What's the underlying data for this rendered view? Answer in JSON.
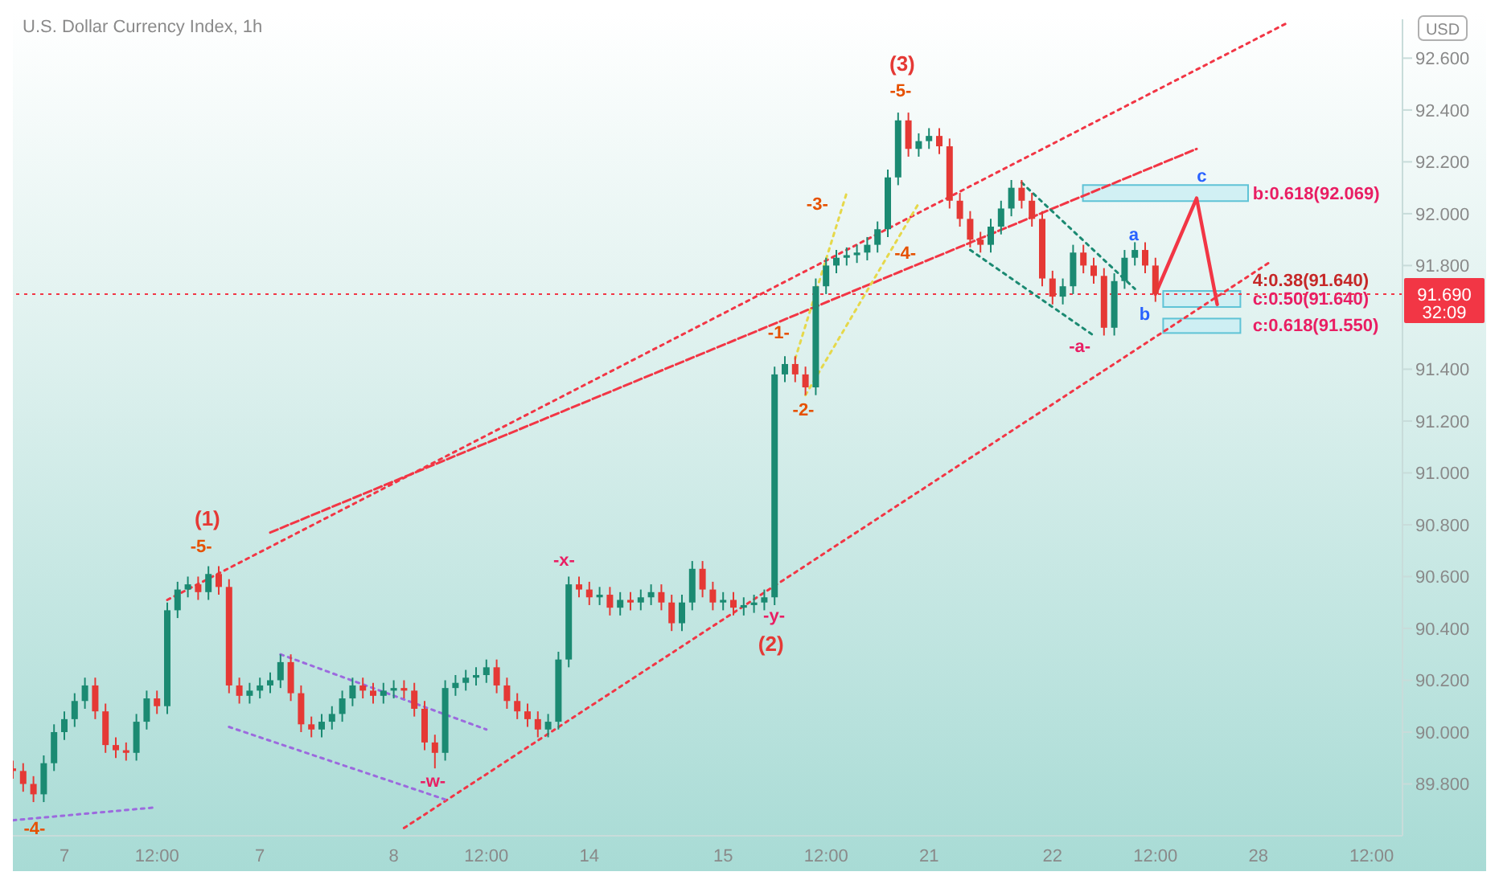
{
  "chart_data": {
    "type": "candlestick",
    "title": "U.S. Dollar Currency Index, 1h",
    "categories": [
      null,
      null,
      null,
      null,
      null,
      "7",
      null,
      null,
      null,
      null,
      null,
      null,
      null,
      null,
      "12:00",
      null,
      null,
      null,
      null,
      null,
      null,
      null,
      null,
      null,
      "7",
      null,
      null,
      null,
      null,
      null,
      null,
      null,
      null,
      null,
      null,
      null,
      null,
      "8",
      null,
      null,
      null,
      null,
      null,
      null,
      null,
      null,
      "12:00",
      null,
      null,
      null,
      null,
      null,
      null,
      null,
      null,
      null,
      "14",
      null,
      null,
      null,
      null,
      null,
      null,
      null,
      null,
      null,
      null,
      null,
      null,
      "15",
      null,
      null,
      null,
      null,
      null,
      null,
      null,
      null,
      null,
      "12:00",
      null,
      null,
      null,
      null,
      null,
      null,
      null,
      null,
      null,
      "21",
      null,
      null,
      null,
      null,
      null,
      null,
      null,
      null,
      null,
      null,
      null,
      "22",
      null,
      null,
      null,
      null,
      null,
      null,
      null,
      null,
      null,
      "12:00",
      null,
      null,
      null,
      null,
      null,
      null,
      null,
      null,
      null,
      "28",
      null,
      null,
      null,
      null,
      null,
      null,
      null,
      null,
      null,
      null,
      "12:00",
      null,
      null,
      null
    ],
    "ohlc": [
      [
        89.86,
        89.89,
        89.82,
        89.85
      ],
      [
        89.85,
        89.88,
        89.77,
        89.8
      ],
      [
        89.8,
        89.83,
        89.73,
        89.76
      ],
      [
        89.76,
        89.91,
        89.73,
        89.88
      ],
      [
        89.88,
        90.03,
        89.85,
        90.0
      ],
      [
        90.0,
        90.08,
        89.97,
        90.05
      ],
      [
        90.05,
        90.15,
        90.02,
        90.12
      ],
      [
        90.12,
        90.21,
        90.09,
        90.18
      ],
      [
        90.18,
        90.21,
        90.05,
        90.08
      ],
      [
        90.08,
        90.11,
        89.92,
        89.95
      ],
      [
        89.95,
        89.98,
        89.9,
        89.93
      ],
      [
        89.93,
        89.96,
        89.89,
        89.92
      ],
      [
        89.92,
        90.07,
        89.89,
        90.04
      ],
      [
        90.04,
        90.16,
        90.01,
        90.13
      ],
      [
        90.13,
        90.16,
        90.07,
        90.1
      ],
      [
        90.1,
        90.5,
        90.07,
        90.47
      ],
      [
        90.47,
        90.58,
        90.44,
        90.55
      ],
      [
        90.55,
        90.6,
        90.52,
        90.57
      ],
      [
        90.57,
        90.6,
        90.51,
        90.54
      ],
      [
        90.54,
        90.64,
        90.51,
        90.61
      ],
      [
        90.61,
        90.64,
        90.53,
        90.56
      ],
      [
        90.56,
        90.59,
        90.15,
        90.18
      ],
      [
        90.18,
        90.21,
        90.11,
        90.14
      ],
      [
        90.14,
        90.19,
        90.11,
        90.16
      ],
      [
        90.16,
        90.21,
        90.13,
        90.18
      ],
      [
        90.18,
        90.23,
        90.15,
        90.2
      ],
      [
        90.2,
        90.3,
        90.17,
        90.27
      ],
      [
        90.27,
        90.3,
        90.12,
        90.15
      ],
      [
        90.15,
        90.18,
        90.0,
        90.03
      ],
      [
        90.03,
        90.06,
        89.98,
        90.01
      ],
      [
        90.01,
        90.07,
        89.98,
        90.04
      ],
      [
        90.04,
        90.1,
        90.01,
        90.07
      ],
      [
        90.07,
        90.16,
        90.04,
        90.13
      ],
      [
        90.13,
        90.21,
        90.1,
        90.18
      ],
      [
        90.18,
        90.21,
        90.13,
        90.16
      ],
      [
        90.16,
        90.19,
        90.11,
        90.14
      ],
      [
        90.14,
        90.19,
        90.11,
        90.16
      ],
      [
        90.16,
        90.2,
        90.13,
        90.17
      ],
      [
        90.17,
        90.2,
        90.13,
        90.16
      ],
      [
        90.16,
        90.19,
        90.06,
        90.09
      ],
      [
        90.09,
        90.12,
        89.93,
        89.96
      ],
      [
        89.96,
        89.99,
        89.86,
        89.92
      ],
      [
        89.92,
        90.2,
        89.89,
        90.17
      ],
      [
        90.17,
        90.22,
        90.14,
        90.19
      ],
      [
        90.19,
        90.24,
        90.16,
        90.21
      ],
      [
        90.21,
        90.25,
        90.18,
        90.22
      ],
      [
        90.22,
        90.28,
        90.19,
        90.25
      ],
      [
        90.25,
        90.28,
        90.15,
        90.18
      ],
      [
        90.18,
        90.21,
        90.09,
        90.12
      ],
      [
        90.12,
        90.15,
        90.05,
        90.08
      ],
      [
        90.08,
        90.11,
        90.02,
        90.05
      ],
      [
        90.05,
        90.08,
        89.98,
        90.01
      ],
      [
        90.01,
        90.07,
        89.98,
        90.04
      ],
      [
        90.04,
        90.31,
        90.01,
        90.28
      ],
      [
        90.28,
        90.6,
        90.25,
        90.57
      ],
      [
        90.57,
        90.6,
        90.52,
        90.55
      ],
      [
        90.55,
        90.58,
        90.49,
        90.52
      ],
      [
        90.52,
        90.56,
        90.49,
        90.53
      ],
      [
        90.53,
        90.56,
        90.45,
        90.48
      ],
      [
        90.48,
        90.54,
        90.45,
        90.51
      ],
      [
        90.51,
        90.54,
        90.47,
        90.5
      ],
      [
        90.5,
        90.55,
        90.47,
        90.52
      ],
      [
        90.52,
        90.57,
        90.49,
        90.54
      ],
      [
        90.54,
        90.57,
        90.47,
        90.5
      ],
      [
        90.5,
        90.53,
        90.39,
        90.42
      ],
      [
        90.42,
        90.53,
        90.39,
        90.5
      ],
      [
        90.5,
        90.66,
        90.47,
        90.63
      ],
      [
        90.63,
        90.66,
        90.52,
        90.55
      ],
      [
        90.55,
        90.58,
        90.47,
        90.5
      ],
      [
        90.5,
        90.54,
        90.47,
        90.51
      ],
      [
        90.51,
        90.54,
        90.45,
        90.48
      ],
      [
        90.48,
        90.52,
        90.45,
        90.49
      ],
      [
        90.49,
        90.53,
        90.46,
        90.5
      ],
      [
        90.5,
        90.55,
        90.47,
        90.52
      ],
      [
        90.52,
        91.41,
        90.49,
        91.38
      ],
      [
        91.38,
        91.45,
        91.35,
        91.42
      ],
      [
        91.42,
        91.45,
        91.35,
        91.38
      ],
      [
        91.38,
        91.41,
        91.3,
        91.33
      ],
      [
        91.33,
        91.75,
        91.3,
        91.72
      ],
      [
        91.72,
        91.83,
        91.69,
        91.8
      ],
      [
        91.8,
        91.86,
        91.77,
        91.83
      ],
      [
        91.83,
        91.87,
        91.8,
        91.84
      ],
      [
        91.84,
        91.88,
        91.81,
        91.85
      ],
      [
        91.85,
        91.91,
        91.82,
        91.88
      ],
      [
        91.88,
        91.97,
        91.85,
        91.94
      ],
      [
        91.94,
        92.17,
        91.91,
        92.14
      ],
      [
        92.14,
        92.39,
        92.11,
        92.36
      ],
      [
        92.36,
        92.39,
        92.22,
        92.25
      ],
      [
        92.25,
        92.31,
        92.22,
        92.28
      ],
      [
        92.28,
        92.33,
        92.25,
        92.3
      ],
      [
        92.3,
        92.33,
        92.23,
        92.26
      ],
      [
        92.26,
        92.29,
        92.02,
        92.05
      ],
      [
        92.05,
        92.08,
        91.95,
        91.98
      ],
      [
        91.98,
        92.01,
        91.87,
        91.9
      ],
      [
        91.9,
        91.93,
        91.85,
        91.88
      ],
      [
        91.88,
        91.98,
        91.85,
        91.95
      ],
      [
        91.95,
        92.05,
        91.92,
        92.02
      ],
      [
        92.02,
        92.13,
        91.99,
        92.1
      ],
      [
        92.1,
        92.13,
        92.02,
        92.05
      ],
      [
        92.05,
        92.08,
        91.95,
        91.98
      ],
      [
        91.98,
        92.01,
        91.72,
        91.75
      ],
      [
        91.75,
        91.78,
        91.65,
        91.68
      ],
      [
        91.68,
        91.75,
        91.65,
        91.72
      ],
      [
        91.72,
        91.88,
        91.69,
        91.85
      ],
      [
        91.85,
        91.88,
        91.77,
        91.8
      ],
      [
        91.8,
        91.83,
        91.73,
        91.76
      ],
      [
        91.76,
        91.79,
        91.53,
        91.56
      ],
      [
        91.56,
        91.77,
        91.53,
        91.74
      ],
      [
        91.74,
        91.86,
        91.71,
        91.83
      ],
      [
        91.83,
        91.89,
        91.8,
        91.86
      ],
      [
        91.86,
        91.89,
        91.77,
        91.8
      ],
      [
        91.8,
        91.83,
        91.66,
        91.69
      ],
      null,
      null,
      null,
      null,
      null,
      null,
      null,
      null,
      null,
      null,
      null,
      null,
      null,
      null,
      null,
      null,
      null,
      null,
      null,
      null,
      null,
      null,
      null,
      null
    ],
    "series": [
      {
        "type": "line",
        "color": "#f23645",
        "line_style": "dotted",
        "values": [
          null,
          null,
          null,
          null,
          null,
          null,
          null,
          null,
          null,
          null,
          null,
          null,
          null,
          null,
          null,
          90.51,
          null,
          null,
          null,
          null,
          null,
          null,
          null,
          null,
          null,
          null,
          null,
          null,
          null,
          null,
          null,
          null,
          null,
          null,
          null,
          null,
          null,
          null,
          null,
          null,
          null,
          null,
          null,
          null,
          null,
          null,
          null,
          null,
          null,
          null,
          null,
          null,
          null,
          null,
          null,
          null,
          null,
          null,
          null,
          null,
          null,
          null,
          null,
          null,
          null,
          null,
          null,
          null,
          null,
          null,
          null,
          null,
          null,
          null,
          null,
          null,
          null,
          null,
          null,
          null,
          null,
          null,
          null,
          null,
          null,
          null,
          null,
          null,
          null,
          null,
          null,
          null,
          null,
          null,
          null,
          null,
          null,
          null,
          null,
          null,
          null,
          null,
          null,
          null,
          null,
          null,
          null,
          null,
          null,
          null,
          null,
          null,
          null,
          null,
          null,
          null,
          null,
          null,
          null,
          null,
          null,
          null,
          null,
          null,
          92.74,
          null,
          null,
          null,
          null,
          null,
          null,
          null,
          null,
          null,
          null,
          null
        ]
      },
      {
        "type": "line",
        "color": "#f23645",
        "line_style": "dashed",
        "values": [
          null,
          null,
          null,
          null,
          null,
          null,
          null,
          null,
          null,
          null,
          null,
          null,
          null,
          null,
          null,
          null,
          null,
          null,
          null,
          null,
          null,
          null,
          null,
          null,
          null,
          90.77,
          null,
          null,
          null,
          null,
          null,
          null,
          null,
          null,
          null,
          null,
          null,
          null,
          null,
          null,
          null,
          null,
          null,
          null,
          null,
          null,
          null,
          null,
          null,
          null,
          null,
          null,
          null,
          null,
          null,
          null,
          null,
          null,
          null,
          null,
          null,
          null,
          null,
          null,
          null,
          null,
          null,
          null,
          null,
          null,
          null,
          null,
          null,
          null,
          null,
          null,
          null,
          null,
          null,
          null,
          null,
          null,
          null,
          null,
          null,
          null,
          null,
          null,
          null,
          null,
          null,
          null,
          null,
          null,
          null,
          null,
          null,
          null,
          null,
          null,
          null,
          null,
          null,
          null,
          null,
          null,
          null,
          null,
          null,
          null,
          null,
          null,
          null,
          null,
          null,
          92.25,
          null,
          null,
          null,
          null,
          null,
          null,
          null,
          null,
          null,
          null,
          null,
          null,
          null,
          null,
          null,
          null,
          null,
          null,
          null,
          null
        ]
      },
      {
        "type": "line",
        "color": "#f23645",
        "line_style": "dotted",
        "values": [
          null,
          null,
          null,
          null,
          null,
          null,
          null,
          null,
          null,
          null,
          null,
          null,
          null,
          null,
          null,
          null,
          null,
          null,
          null,
          null,
          null,
          null,
          null,
          null,
          null,
          null,
          null,
          null,
          null,
          null,
          null,
          null,
          null,
          null,
          null,
          null,
          null,
          null,
          89.63,
          null,
          null,
          null,
          null,
          null,
          null,
          null,
          null,
          null,
          null,
          null,
          null,
          null,
          null,
          null,
          null,
          null,
          null,
          null,
          null,
          null,
          null,
          null,
          null,
          null,
          null,
          null,
          null,
          null,
          null,
          null,
          null,
          null,
          null,
          null,
          null,
          null,
          null,
          null,
          null,
          null,
          null,
          null,
          null,
          null,
          null,
          null,
          null,
          null,
          null,
          null,
          null,
          null,
          null,
          null,
          null,
          null,
          null,
          null,
          null,
          null,
          null,
          null,
          null,
          null,
          null,
          null,
          null,
          null,
          null,
          null,
          null,
          null,
          null,
          null,
          null,
          null,
          null,
          null,
          null,
          null,
          null,
          null,
          91.81,
          null,
          null,
          null,
          null,
          null,
          null,
          null,
          null,
          null,
          null,
          null,
          null,
          null
        ]
      },
      {
        "type": "line",
        "color": "#9c6ade",
        "line_style": "dotted",
        "values": [
          null,
          null,
          null,
          null,
          null,
          null,
          null,
          null,
          null,
          null,
          null,
          null,
          null,
          null,
          null,
          null,
          null,
          null,
          null,
          null,
          null,
          null,
          null,
          null,
          null,
          null,
          90.3,
          null,
          null,
          null,
          null,
          null,
          null,
          null,
          null,
          null,
          null,
          null,
          null,
          null,
          null,
          null,
          null,
          null,
          null,
          null,
          90.01,
          null,
          null,
          null,
          null,
          null,
          null,
          null,
          null,
          null,
          null,
          null,
          null,
          null,
          null,
          null,
          null,
          null,
          null,
          null,
          null,
          null,
          null,
          null,
          null,
          null,
          null,
          null,
          null,
          null,
          null,
          null,
          null,
          null,
          null,
          null,
          null,
          null,
          null,
          null,
          null,
          null,
          null,
          null,
          null,
          null,
          null,
          null,
          null,
          null,
          null,
          null,
          null,
          null,
          null,
          null,
          null,
          null,
          null,
          null,
          null,
          null,
          null,
          null,
          null,
          null,
          null,
          null,
          null,
          null,
          null,
          null,
          null,
          null,
          null,
          null,
          null,
          null,
          null,
          null,
          null,
          null,
          null,
          null,
          null,
          null,
          null,
          null,
          null,
          null
        ]
      },
      {
        "type": "line",
        "color": "#9c6ade",
        "line_style": "dotted",
        "values": [
          null,
          null,
          null,
          null,
          null,
          null,
          null,
          null,
          null,
          null,
          null,
          null,
          null,
          null,
          null,
          null,
          null,
          null,
          null,
          null,
          null,
          90.02,
          null,
          null,
          null,
          null,
          null,
          null,
          null,
          null,
          null,
          null,
          null,
          null,
          null,
          null,
          null,
          null,
          null,
          null,
          null,
          null,
          89.74,
          null,
          null,
          null,
          null,
          null,
          null,
          null,
          null,
          null,
          null,
          null,
          null,
          null,
          null,
          null,
          null,
          null,
          null,
          null,
          null,
          null,
          null,
          null,
          null,
          null,
          null,
          null,
          null,
          null,
          null,
          null,
          null,
          null,
          null,
          null,
          null,
          null,
          null,
          null,
          null,
          null,
          null,
          null,
          null,
          null,
          null,
          null,
          null,
          null,
          null,
          null,
          null,
          null,
          null,
          null,
          null,
          null,
          null,
          null,
          null,
          null,
          null,
          null,
          null,
          null,
          null,
          null,
          null,
          null,
          null,
          null,
          null,
          null,
          null,
          null,
          null,
          null,
          null,
          null,
          null,
          null,
          null,
          null,
          null,
          null,
          null,
          null,
          null,
          null,
          null,
          null,
          null,
          null
        ]
      },
      {
        "type": "line",
        "color": "#9c6ade",
        "line_style": "dotted",
        "values": [
          89.66,
          null,
          null,
          null,
          null,
          null,
          null,
          null,
          null,
          null,
          null,
          null,
          null,
          null,
          89.71,
          null,
          null,
          null,
          null,
          null,
          null,
          null,
          null,
          null,
          null,
          null,
          null,
          null,
          null,
          null,
          null,
          null,
          null,
          null,
          null,
          null,
          null,
          null,
          null,
          null,
          null,
          null,
          null,
          null,
          null,
          null,
          null,
          null,
          null,
          null,
          null,
          null,
          null,
          null,
          null,
          null,
          null,
          null,
          null,
          null,
          null,
          null,
          null,
          null,
          null,
          null,
          null,
          null,
          null,
          null,
          null,
          null,
          null,
          null,
          null,
          null,
          null,
          null,
          null,
          null,
          null,
          null,
          null,
          null,
          null,
          null,
          null,
          null,
          null,
          null,
          null,
          null,
          null,
          null,
          null,
          null,
          null,
          null,
          null,
          null,
          null,
          null,
          null,
          null,
          null,
          null,
          null,
          null,
          null,
          null,
          null,
          null,
          null,
          null,
          null,
          null,
          null,
          null,
          null,
          null,
          null,
          null,
          null,
          null,
          null,
          null,
          null,
          null,
          null,
          null,
          null,
          null,
          null,
          null,
          null,
          null
        ]
      },
      {
        "type": "line",
        "color": "#e6d84a",
        "line_style": "dotted",
        "values": [
          null,
          null,
          null,
          null,
          null,
          null,
          null,
          null,
          null,
          null,
          null,
          null,
          null,
          null,
          null,
          null,
          null,
          null,
          null,
          null,
          null,
          null,
          null,
          null,
          null,
          null,
          null,
          null,
          null,
          null,
          null,
          null,
          null,
          null,
          null,
          null,
          null,
          null,
          null,
          null,
          null,
          null,
          null,
          null,
          null,
          null,
          null,
          null,
          null,
          null,
          null,
          null,
          null,
          null,
          null,
          null,
          null,
          null,
          null,
          null,
          null,
          null,
          null,
          null,
          null,
          null,
          null,
          null,
          null,
          null,
          null,
          null,
          null,
          null,
          null,
          null,
          91.44,
          null,
          null,
          null,
          null,
          92.08,
          null,
          null,
          null,
          null,
          null,
          null,
          null,
          null,
          null,
          null,
          null,
          null,
          null,
          null,
          null,
          null,
          null,
          null,
          null,
          null,
          null,
          null,
          null,
          null,
          null,
          null,
          null,
          null,
          null,
          null,
          null,
          null,
          null,
          null,
          null,
          null,
          null,
          null,
          null,
          null,
          null,
          null,
          null,
          null,
          null,
          null,
          null,
          null,
          null,
          null,
          null,
          null,
          null,
          null
        ]
      },
      {
        "type": "line",
        "color": "#e6d84a",
        "line_style": "dotted",
        "values": [
          null,
          null,
          null,
          null,
          null,
          null,
          null,
          null,
          null,
          null,
          null,
          null,
          null,
          null,
          null,
          null,
          null,
          null,
          null,
          null,
          null,
          null,
          null,
          null,
          null,
          null,
          null,
          null,
          null,
          null,
          null,
          null,
          null,
          null,
          null,
          null,
          null,
          null,
          null,
          null,
          null,
          null,
          null,
          null,
          null,
          null,
          null,
          null,
          null,
          null,
          null,
          null,
          null,
          null,
          null,
          null,
          null,
          null,
          null,
          null,
          null,
          null,
          null,
          null,
          null,
          null,
          null,
          null,
          null,
          null,
          null,
          null,
          null,
          null,
          null,
          null,
          null,
          91.3,
          null,
          null,
          null,
          null,
          null,
          null,
          null,
          null,
          null,
          null,
          92.04,
          null,
          null,
          null,
          null,
          null,
          null,
          null,
          null,
          null,
          null,
          null,
          null,
          null,
          null,
          null,
          null,
          null,
          null,
          null,
          null,
          null,
          null,
          null,
          null,
          null,
          null,
          null,
          null,
          null,
          null,
          null,
          null,
          null,
          null,
          null,
          null,
          null,
          null,
          null,
          null,
          null,
          null,
          null,
          null,
          null,
          null,
          null
        ]
      },
      {
        "type": "line",
        "color": "#1b8a72",
        "line_style": "dotted",
        "values": [
          null,
          null,
          null,
          null,
          null,
          null,
          null,
          null,
          null,
          null,
          null,
          null,
          null,
          null,
          null,
          null,
          null,
          null,
          null,
          null,
          null,
          null,
          null,
          null,
          null,
          null,
          null,
          null,
          null,
          null,
          null,
          null,
          null,
          null,
          null,
          null,
          null,
          null,
          null,
          null,
          null,
          null,
          null,
          null,
          null,
          null,
          null,
          null,
          null,
          null,
          null,
          null,
          null,
          null,
          null,
          null,
          null,
          null,
          null,
          null,
          null,
          null,
          null,
          null,
          null,
          null,
          null,
          null,
          null,
          null,
          null,
          null,
          null,
          null,
          null,
          null,
          null,
          null,
          null,
          null,
          null,
          null,
          null,
          null,
          null,
          null,
          null,
          null,
          null,
          null,
          null,
          null,
          null,
          null,
          null,
          null,
          null,
          null,
          92.12,
          null,
          null,
          null,
          null,
          null,
          null,
          null,
          null,
          null,
          null,
          91.71,
          null,
          null,
          null,
          null,
          null,
          null,
          null,
          null,
          null,
          null,
          null,
          null,
          null,
          null,
          null,
          null,
          null,
          null,
          null,
          null,
          null,
          null,
          null,
          null,
          null,
          null
        ]
      },
      {
        "type": "line",
        "color": "#1b8a72",
        "line_style": "dotted",
        "values": [
          null,
          null,
          null,
          null,
          null,
          null,
          null,
          null,
          null,
          null,
          null,
          null,
          null,
          null,
          null,
          null,
          null,
          null,
          null,
          null,
          null,
          null,
          null,
          null,
          null,
          null,
          null,
          null,
          null,
          null,
          null,
          null,
          null,
          null,
          null,
          null,
          null,
          null,
          null,
          null,
          null,
          null,
          null,
          null,
          null,
          null,
          null,
          null,
          null,
          null,
          null,
          null,
          null,
          null,
          null,
          null,
          null,
          null,
          null,
          null,
          null,
          null,
          null,
          null,
          null,
          null,
          null,
          null,
          null,
          null,
          null,
          null,
          null,
          null,
          null,
          null,
          null,
          null,
          null,
          null,
          null,
          null,
          null,
          null,
          null,
          null,
          null,
          null,
          null,
          null,
          null,
          null,
          null,
          91.86,
          null,
          null,
          null,
          null,
          null,
          null,
          null,
          null,
          null,
          null,
          null,
          91.53,
          null,
          null,
          null,
          null,
          null,
          null,
          null,
          null,
          null,
          null,
          null,
          null,
          null,
          null,
          null,
          null,
          null,
          null,
          null,
          null,
          null,
          null,
          null,
          null,
          null,
          null,
          null,
          null,
          null,
          null
        ]
      },
      {
        "type": "line",
        "color": "#f23645",
        "line_style": "solid",
        "values": [
          null,
          null,
          null,
          null,
          null,
          null,
          null,
          null,
          null,
          null,
          null,
          null,
          null,
          null,
          null,
          null,
          null,
          null,
          null,
          null,
          null,
          null,
          null,
          null,
          null,
          null,
          null,
          null,
          null,
          null,
          null,
          null,
          null,
          null,
          null,
          null,
          null,
          null,
          null,
          null,
          null,
          null,
          null,
          null,
          null,
          null,
          null,
          null,
          null,
          null,
          null,
          null,
          null,
          null,
          null,
          null,
          null,
          null,
          null,
          null,
          null,
          null,
          null,
          null,
          null,
          null,
          null,
          null,
          null,
          null,
          null,
          null,
          null,
          null,
          null,
          null,
          null,
          null,
          null,
          null,
          null,
          null,
          null,
          null,
          null,
          null,
          null,
          null,
          null,
          null,
          null,
          null,
          null,
          null,
          null,
          null,
          null,
          null,
          null,
          null,
          null,
          null,
          null,
          null,
          null,
          null,
          null,
          null,
          null,
          null,
          null,
          91.69,
          null,
          null,
          null,
          92.06,
          null,
          91.65,
          null,
          null,
          null,
          null,
          null,
          null,
          null,
          null,
          null,
          null,
          null,
          null,
          null,
          null,
          null,
          null,
          null,
          null
        ]
      }
    ],
    "ylim": [
      89.6,
      92.75
    ],
    "yticks": [
      {
        "value": 89.8,
        "label": "89.800"
      },
      {
        "value": 90,
        "label": "90.000"
      },
      {
        "value": 90.2,
        "label": "90.200"
      },
      {
        "value": 90.4,
        "label": "90.400"
      },
      {
        "value": 90.6,
        "label": "90.600"
      },
      {
        "value": 90.8,
        "label": "90.800"
      },
      {
        "value": 91,
        "label": "91.000"
      },
      {
        "value": 91.2,
        "label": "91.200"
      },
      {
        "value": 91.4,
        "label": "91.400"
      },
      {
        "value": 91.8,
        "label": "91.800"
      },
      {
        "value": 92,
        "label": "92.000"
      },
      {
        "value": 92.2,
        "label": "92.200"
      },
      {
        "value": 92.4,
        "label": "92.400"
      },
      {
        "value": 92.6,
        "label": "92.600"
      }
    ],
    "ref_lines": [
      {
        "axis": "y",
        "value": 91.69,
        "label": "91.690",
        "color": "#f23645",
        "line_style": "dotted"
      }
    ],
    "annotations": [
      "-4-",
      "(1)",
      "-5-",
      "-w-",
      "-x-",
      "-y-",
      "(2)",
      "-1-",
      "-2-",
      "-3-",
      "-4-",
      "(3)",
      "-5-",
      "-a-",
      "a",
      "b",
      "c",
      "b:0.618(92.069)",
      "c:0.50(91.640)",
      "4:0.38(91.640)",
      "c:0.618(91.550)",
      "32:09",
      "USD"
    ],
    "grid": false,
    "legend": false,
    "marker": "none"
  }
}
